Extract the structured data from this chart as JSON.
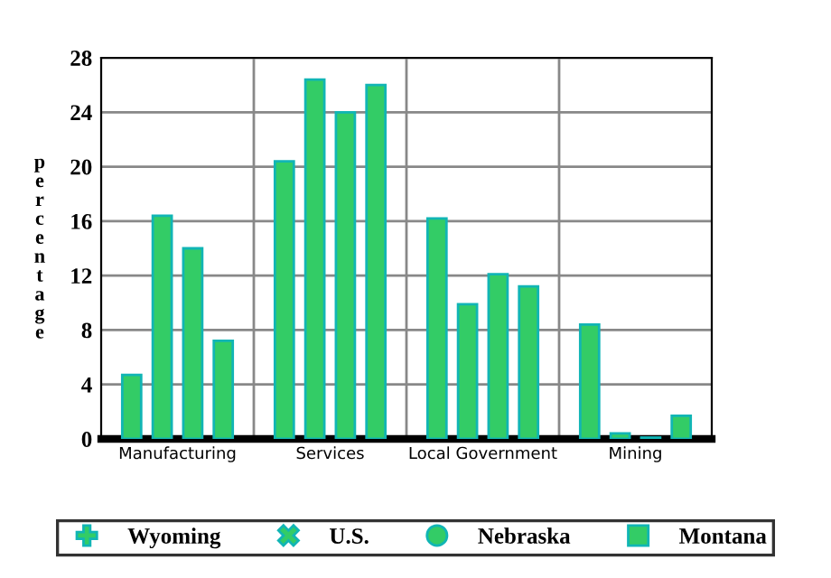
{
  "chart_data": {
    "type": "bar",
    "ylabel": "percentage",
    "categories": [
      "Manufacturing",
      "Services",
      "Local Government",
      "Mining"
    ],
    "series": [
      {
        "name": "Wyoming",
        "color": "#33cc66",
        "marker": "cross",
        "values": [
          4.7,
          20.4,
          16.2,
          8.4
        ]
      },
      {
        "name": "U.S.",
        "color": "#33cc66",
        "marker": "diamond",
        "values": [
          16.4,
          26.4,
          9.9,
          0.4
        ]
      },
      {
        "name": "Nebraska",
        "color": "#33cc66",
        "marker": "circle",
        "values": [
          14.0,
          24.0,
          12.1,
          0.1
        ]
      },
      {
        "name": "Montana",
        "color": "#33cc66",
        "marker": "square",
        "values": [
          7.2,
          26.0,
          11.2,
          1.7
        ]
      }
    ],
    "ylim": [
      0,
      28
    ],
    "yticks": [
      0,
      4,
      8,
      12,
      16,
      20,
      24,
      28
    ],
    "grid": true,
    "legend": "bottom"
  }
}
